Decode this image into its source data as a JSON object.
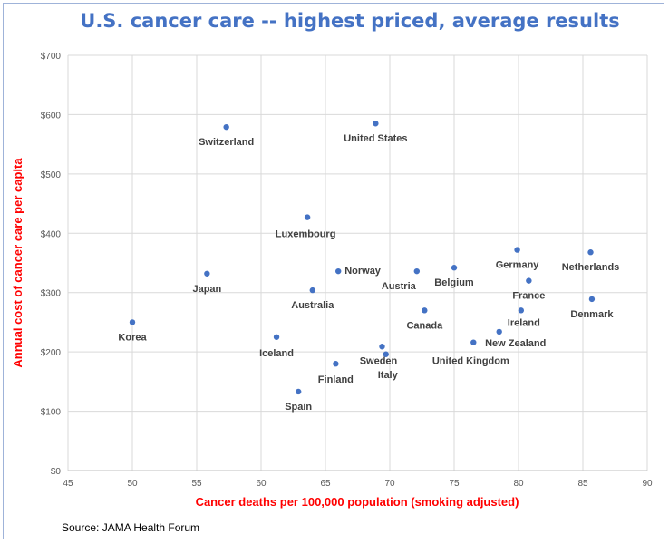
{
  "chart_data": {
    "type": "scatter",
    "title": "U.S. cancer care -- highest priced, average results",
    "xlabel": "Cancer deaths per 100,000 population (smoking adjusted)",
    "ylabel": "Annual cost of cancer care per capita",
    "xlim": [
      45,
      90
    ],
    "ylim": [
      0,
      700
    ],
    "x_ticks": [
      "45",
      "50",
      "55",
      "60",
      "65",
      "70",
      "75",
      "80",
      "85",
      "90"
    ],
    "y_ticks": [
      "$0",
      "$100",
      "$200",
      "$300",
      "$400",
      "$500",
      "$600",
      "$700"
    ],
    "grid": true,
    "marker_color": "#4472c4",
    "points": [
      {
        "label": "Korea",
        "x": 50.0,
        "y": 250
      },
      {
        "label": "Japan",
        "x": 55.8,
        "y": 332
      },
      {
        "label": "Switzerland",
        "x": 57.3,
        "y": 579
      },
      {
        "label": "United States",
        "x": 68.9,
        "y": 585
      },
      {
        "label": "Luxembourg",
        "x": 63.6,
        "y": 427
      },
      {
        "label": "Norway",
        "x": 66.0,
        "y": 336
      },
      {
        "label": "Australia",
        "x": 64.0,
        "y": 304
      },
      {
        "label": "Iceland",
        "x": 61.2,
        "y": 225
      },
      {
        "label": "Finland",
        "x": 65.8,
        "y": 180
      },
      {
        "label": "Spain",
        "x": 62.9,
        "y": 133
      },
      {
        "label": "Sweden",
        "x": 69.4,
        "y": 209
      },
      {
        "label": "Italy",
        "x": 69.7,
        "y": 196
      },
      {
        "label": "Austria",
        "x": 72.1,
        "y": 336
      },
      {
        "label": "Belgium",
        "x": 75.0,
        "y": 342
      },
      {
        "label": "Canada",
        "x": 72.7,
        "y": 270
      },
      {
        "label": "Germany",
        "x": 79.9,
        "y": 372
      },
      {
        "label": "Netherlands",
        "x": 85.6,
        "y": 368
      },
      {
        "label": "France",
        "x": 80.8,
        "y": 320
      },
      {
        "label": "Denmark",
        "x": 85.7,
        "y": 289
      },
      {
        "label": "Ireland",
        "x": 80.2,
        "y": 270
      },
      {
        "label": "New Zealand",
        "x": 78.5,
        "y": 234
      },
      {
        "label": "United Kingdom",
        "x": 76.5,
        "y": 216
      }
    ],
    "source": "Source: JAMA Health Forum"
  }
}
